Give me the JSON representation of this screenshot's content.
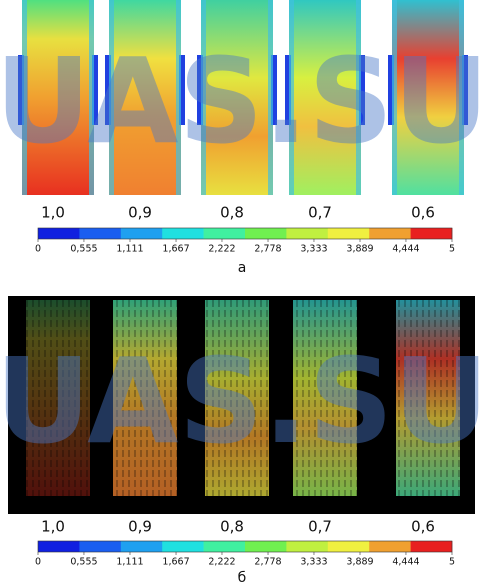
{
  "watermark": "UAS.SU",
  "panels": [
    {
      "labels": [
        "1,0",
        "0,9",
        "0,8",
        "0,7",
        "0,6"
      ],
      "caption": "а",
      "colorbar": {
        "range": [
          0,
          5
        ],
        "ticks": [
          0,
          {
            "value": 0.555,
            "label": "0,555"
          },
          {
            "value": 1.111,
            "label": "1,111"
          },
          {
            "value": 1.667,
            "label": "1,667"
          },
          {
            "value": 2.222,
            "label": "2,222"
          },
          {
            "value": 2.778,
            "label": "2,778"
          },
          {
            "value": 3.333,
            "label": "3,333"
          },
          {
            "value": 3.889,
            "label": "3,889"
          },
          {
            "value": 4.444,
            "label": "4,444"
          },
          5
        ],
        "colors": [
          "#1020e0",
          "#1a5ef0",
          "#1fa0f0",
          "#20e0e0",
          "#40f0a0",
          "#70f050",
          "#c0f040",
          "#f0f040",
          "#f0a030",
          "#e82020"
        ]
      }
    },
    {
      "labels": [
        "1,0",
        "0,9",
        "0,8",
        "0,7",
        "0,6"
      ],
      "caption": "б",
      "colorbar": {
        "range": [
          0,
          5
        ],
        "ticks": [
          0,
          {
            "value": 0.555,
            "label": "0,555"
          },
          {
            "value": 1.111,
            "label": "1,111"
          },
          {
            "value": 1.667,
            "label": "1,667"
          },
          {
            "value": 2.222,
            "label": "2,222"
          },
          {
            "value": 2.778,
            "label": "2,778"
          },
          {
            "value": 3.333,
            "label": "3,333"
          },
          {
            "value": 3.889,
            "label": "3,889"
          },
          {
            "value": 4.444,
            "label": "4,444"
          },
          5
        ],
        "colors": [
          "#1020e0",
          "#1a5ef0",
          "#1fa0f0",
          "#20e0e0",
          "#40f0a0",
          "#70f050",
          "#c0f040",
          "#f0f040",
          "#f0a030",
          "#e82020"
        ]
      }
    }
  ]
}
